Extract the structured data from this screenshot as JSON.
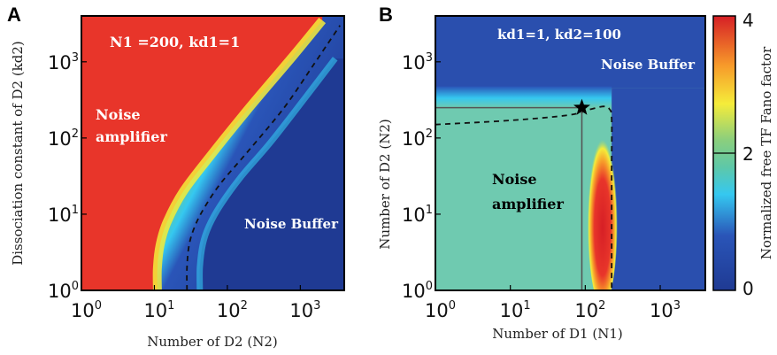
{
  "colors": {
    "colormap": [
      "#1f3a93",
      "#2a55b8",
      "#35c8f0",
      "#5ec8a8",
      "#a9d86a",
      "#f5ec3a",
      "#f79a2a",
      "#e8352a",
      "#d61f26"
    ],
    "dashed_line": "#111111",
    "star": "#000000"
  },
  "chart_data": [
    {
      "panel": "A",
      "type": "heatmap",
      "xlabel": "Number of D2 (N2)",
      "ylabel": "Dissociation constant of D2 (kd2)",
      "x_scale": "log",
      "y_scale": "log",
      "xlim": [
        1,
        4000
      ],
      "ylim": [
        1,
        4000
      ],
      "x_ticks": [
        {
          "base": "10",
          "exp": "0",
          "value": 1
        },
        {
          "base": "10",
          "exp": "1",
          "value": 10
        },
        {
          "base": "10",
          "exp": "2",
          "value": 100
        },
        {
          "base": "10",
          "exp": "3",
          "value": 1000
        }
      ],
      "y_ticks": [
        {
          "base": "10",
          "exp": "0",
          "value": 1
        },
        {
          "base": "10",
          "exp": "1",
          "value": 10
        },
        {
          "base": "10",
          "exp": "2",
          "value": 100
        },
        {
          "base": "10",
          "exp": "3",
          "value": 1000
        }
      ],
      "params_label": "N1 =200, kd1=1",
      "region_labels": {
        "amplifier_1": "Noise",
        "amplifier_2": "amplifier",
        "buffer": "Noise Buffer"
      },
      "dashed_contour": [
        [
          28,
          1
        ],
        [
          28,
          2
        ],
        [
          30,
          4
        ],
        [
          36,
          7
        ],
        [
          48,
          12
        ],
        [
          80,
          25
        ],
        [
          200,
          70
        ],
        [
          600,
          250
        ],
        [
          1500,
          900
        ],
        [
          3500,
          3000
        ]
      ],
      "amplifier_boundary": [
        [
          11,
          1
        ],
        [
          11,
          2
        ],
        [
          12,
          4
        ],
        [
          15,
          8
        ],
        [
          25,
          20
        ],
        [
          60,
          60
        ],
        [
          200,
          250
        ],
        [
          800,
          1200
        ],
        [
          2000,
          3500
        ]
      ],
      "buffer_boundary": [
        [
          42,
          1
        ],
        [
          42,
          2
        ],
        [
          46,
          4
        ],
        [
          56,
          7
        ],
        [
          80,
          13
        ],
        [
          150,
          30
        ],
        [
          400,
          90
        ],
        [
          1200,
          350
        ],
        [
          3000,
          1100
        ]
      ],
      "color_value_range": [
        0,
        4
      ]
    },
    {
      "panel": "B",
      "type": "heatmap",
      "xlabel": "Number of D1 (N1)",
      "ylabel": "Number of D2 (N2)",
      "x_scale": "log",
      "y_scale": "log",
      "xlim": [
        1,
        4000
      ],
      "ylim": [
        1,
        4000
      ],
      "x_ticks": [
        {
          "base": "10",
          "exp": "0",
          "value": 1
        },
        {
          "base": "10",
          "exp": "1",
          "value": 10
        },
        {
          "base": "10",
          "exp": "2",
          "value": 100
        },
        {
          "base": "10",
          "exp": "3",
          "value": 1000
        }
      ],
      "y_ticks": [
        {
          "base": "10",
          "exp": "0",
          "value": 1
        },
        {
          "base": "10",
          "exp": "1",
          "value": 10
        },
        {
          "base": "10",
          "exp": "2",
          "value": 100
        },
        {
          "base": "10",
          "exp": "3",
          "value": 1000
        }
      ],
      "params_label": "kd1=1, kd2=100",
      "region_labels": {
        "buffer": "Noise Buffer",
        "amplifier_1": "Noise",
        "amplifier_2": "amplifier"
      },
      "dashed_contour": [
        [
          1,
          150
        ],
        [
          10,
          170
        ],
        [
          60,
          200
        ],
        [
          120,
          240
        ],
        [
          180,
          260
        ],
        [
          210,
          240
        ],
        [
          225,
          180
        ],
        [
          225,
          40
        ],
        [
          225,
          5
        ],
        [
          225,
          1
        ]
      ],
      "hotspot": {
        "n1": 170,
        "n2_low": 1,
        "n2_high": 100,
        "value": 4
      },
      "reference_point": {
        "n1": 90,
        "n2": 250
      },
      "colorbar": {
        "label": "Normalized free TF Fano factor",
        "ticks": [
          "0",
          "2",
          "4"
        ],
        "min": 0,
        "max": 4
      }
    }
  ]
}
